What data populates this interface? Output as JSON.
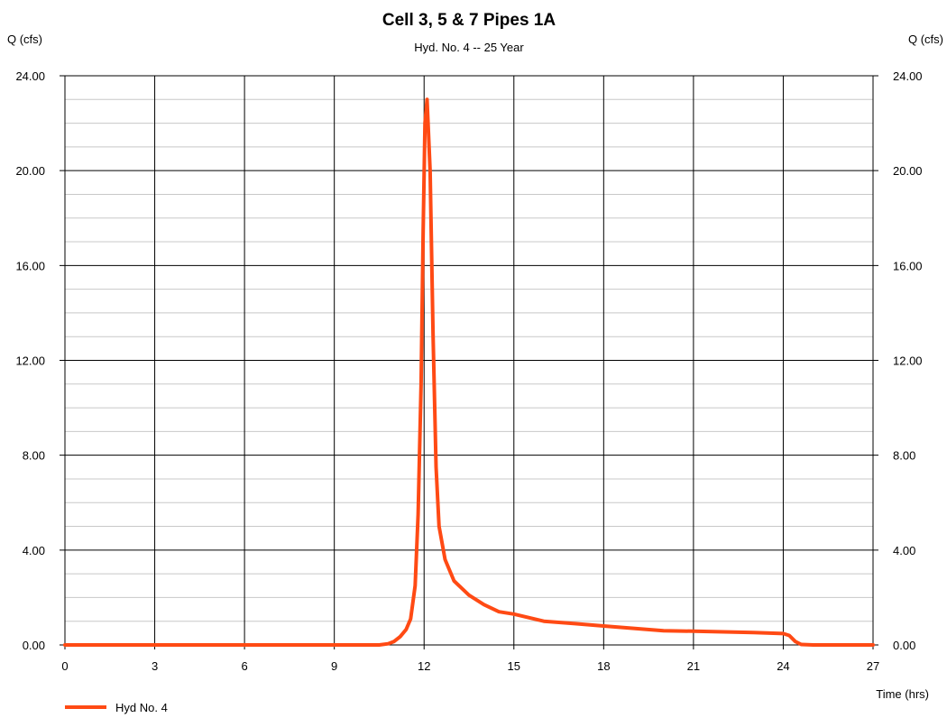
{
  "chart_data": {
    "type": "line",
    "title": "Cell 3, 5 & 7 Pipes 1A",
    "subtitle": "Hyd. No. 4 -- 25 Year",
    "ylabel_left": "Q (cfs)",
    "ylabel_right": "Q (cfs)",
    "xlabel": "Time (hrs)",
    "xlim": [
      0,
      27
    ],
    "ylim": [
      0,
      24
    ],
    "x_ticks": [
      0,
      3,
      6,
      9,
      12,
      15,
      18,
      21,
      24,
      27
    ],
    "x_tick_labels": [
      "0",
      "3",
      "6",
      "9",
      "12",
      "15",
      "18",
      "21",
      "24",
      "27"
    ],
    "y_ticks": [
      0,
      4,
      8,
      12,
      16,
      20,
      24
    ],
    "y_tick_labels": [
      "0.00",
      "4.00",
      "8.00",
      "12.00",
      "16.00",
      "20.00",
      "24.00"
    ],
    "y_minor_step": 1,
    "grid": true,
    "legend_position": "bottom-left",
    "series": [
      {
        "name": "Hyd No. 4",
        "color": "#ff4a14",
        "points": [
          [
            0,
            0
          ],
          [
            10.5,
            0
          ],
          [
            10.8,
            0.05
          ],
          [
            11.0,
            0.15
          ],
          [
            11.2,
            0.35
          ],
          [
            11.4,
            0.65
          ],
          [
            11.55,
            1.1
          ],
          [
            11.7,
            2.5
          ],
          [
            11.8,
            5.5
          ],
          [
            11.9,
            11.0
          ],
          [
            11.97,
            17.5
          ],
          [
            12.03,
            22.0
          ],
          [
            12.1,
            23.0
          ],
          [
            12.2,
            20.0
          ],
          [
            12.3,
            13.0
          ],
          [
            12.4,
            7.5
          ],
          [
            12.5,
            5.0
          ],
          [
            12.7,
            3.6
          ],
          [
            13.0,
            2.7
          ],
          [
            13.5,
            2.1
          ],
          [
            14.0,
            1.7
          ],
          [
            14.5,
            1.4
          ],
          [
            15.0,
            1.3
          ],
          [
            16.0,
            1.0
          ],
          [
            17.0,
            0.9
          ],
          [
            18.0,
            0.8
          ],
          [
            19.0,
            0.7
          ],
          [
            20.0,
            0.6
          ],
          [
            21.0,
            0.58
          ],
          [
            22.0,
            0.55
          ],
          [
            23.0,
            0.52
          ],
          [
            24.0,
            0.48
          ],
          [
            24.2,
            0.4
          ],
          [
            24.4,
            0.15
          ],
          [
            24.6,
            0.02
          ],
          [
            25.0,
            0
          ],
          [
            27,
            0
          ]
        ]
      }
    ]
  }
}
